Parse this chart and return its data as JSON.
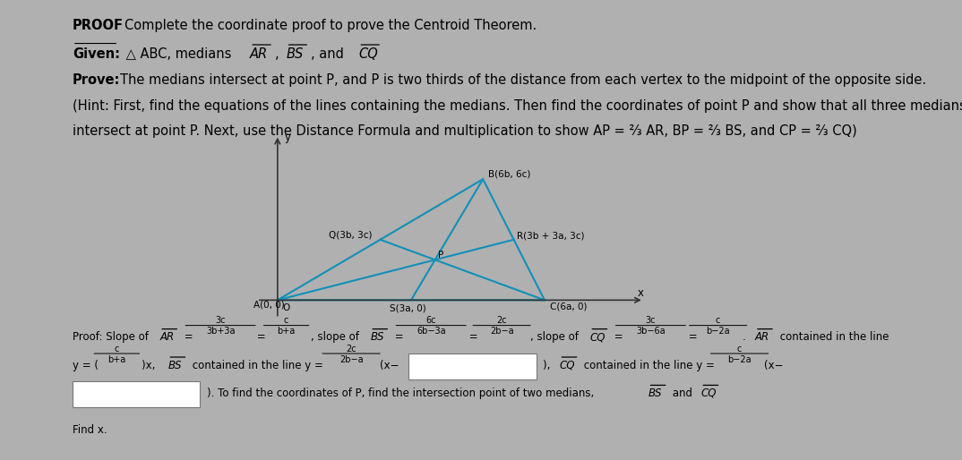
{
  "bg_color": "#b0b0b0",
  "page_bg": "#deded8",
  "triangle_color": "#1090b8",
  "axis_color": "#222222",
  "text_color": "#111111",
  "font_size_main": 10.5,
  "font_size_proof": 8.8,
  "font_size_tri": 7.5,
  "title_bold": "PROOF",
  "title_rest": " Complete the coordinate proof to prove the Centroid Theorem.",
  "given_bold": "Given:",
  "given_rest": " △ ABC, medians ",
  "prove_bold": "Prove:",
  "prove_rest": " The medians intersect at point P, and P is two thirds of the distance from each vertex to the midpoint of the opposite side.",
  "hint1": "(Hint: First, find the equations of the lines containing the medians. Then find the coordinates of point P and show that all three medians",
  "hint2": "intersect at point P. Next, use the Distance Formula and multiplication to show AP = ⅔ AR, BP = ⅔ BS, and CP = ⅔ CQ)",
  "find_x": "Find x.",
  "a_d": 1.3,
  "b_d": 1.0,
  "c_d": 1.0
}
